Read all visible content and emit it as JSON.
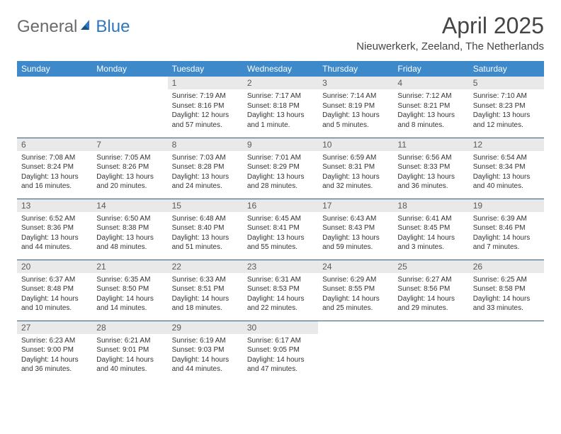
{
  "brand": {
    "part1": "General",
    "part2": "Blue"
  },
  "title": "April 2025",
  "location": "Nieuwerkerk, Zeeland, The Netherlands",
  "colors": {
    "header_bg": "#3d89c9",
    "header_text": "#ffffff",
    "daynum_bg": "#e9e9e9",
    "daynum_text": "#5a5a5a",
    "body_text": "#333333",
    "row_divider": "#2b5a82",
    "logo_gray": "#6a6a6a",
    "logo_blue": "#2f78bf",
    "title_color": "#454545",
    "page_bg": "#ffffff"
  },
  "weekdays": [
    "Sunday",
    "Monday",
    "Tuesday",
    "Wednesday",
    "Thursday",
    "Friday",
    "Saturday"
  ],
  "layout": {
    "leading_blanks": 2,
    "trailing_blanks": 3,
    "columns": 7,
    "rows": 5
  },
  "days": [
    {
      "n": "1",
      "sunrise": "7:19 AM",
      "sunset": "8:16 PM",
      "daylight": "12 hours and 57 minutes."
    },
    {
      "n": "2",
      "sunrise": "7:17 AM",
      "sunset": "8:18 PM",
      "daylight": "13 hours and 1 minute."
    },
    {
      "n": "3",
      "sunrise": "7:14 AM",
      "sunset": "8:19 PM",
      "daylight": "13 hours and 5 minutes."
    },
    {
      "n": "4",
      "sunrise": "7:12 AM",
      "sunset": "8:21 PM",
      "daylight": "13 hours and 8 minutes."
    },
    {
      "n": "5",
      "sunrise": "7:10 AM",
      "sunset": "8:23 PM",
      "daylight": "13 hours and 12 minutes."
    },
    {
      "n": "6",
      "sunrise": "7:08 AM",
      "sunset": "8:24 PM",
      "daylight": "13 hours and 16 minutes."
    },
    {
      "n": "7",
      "sunrise": "7:05 AM",
      "sunset": "8:26 PM",
      "daylight": "13 hours and 20 minutes."
    },
    {
      "n": "8",
      "sunrise": "7:03 AM",
      "sunset": "8:28 PM",
      "daylight": "13 hours and 24 minutes."
    },
    {
      "n": "9",
      "sunrise": "7:01 AM",
      "sunset": "8:29 PM",
      "daylight": "13 hours and 28 minutes."
    },
    {
      "n": "10",
      "sunrise": "6:59 AM",
      "sunset": "8:31 PM",
      "daylight": "13 hours and 32 minutes."
    },
    {
      "n": "11",
      "sunrise": "6:56 AM",
      "sunset": "8:33 PM",
      "daylight": "13 hours and 36 minutes."
    },
    {
      "n": "12",
      "sunrise": "6:54 AM",
      "sunset": "8:34 PM",
      "daylight": "13 hours and 40 minutes."
    },
    {
      "n": "13",
      "sunrise": "6:52 AM",
      "sunset": "8:36 PM",
      "daylight": "13 hours and 44 minutes."
    },
    {
      "n": "14",
      "sunrise": "6:50 AM",
      "sunset": "8:38 PM",
      "daylight": "13 hours and 48 minutes."
    },
    {
      "n": "15",
      "sunrise": "6:48 AM",
      "sunset": "8:40 PM",
      "daylight": "13 hours and 51 minutes."
    },
    {
      "n": "16",
      "sunrise": "6:45 AM",
      "sunset": "8:41 PM",
      "daylight": "13 hours and 55 minutes."
    },
    {
      "n": "17",
      "sunrise": "6:43 AM",
      "sunset": "8:43 PM",
      "daylight": "13 hours and 59 minutes."
    },
    {
      "n": "18",
      "sunrise": "6:41 AM",
      "sunset": "8:45 PM",
      "daylight": "14 hours and 3 minutes."
    },
    {
      "n": "19",
      "sunrise": "6:39 AM",
      "sunset": "8:46 PM",
      "daylight": "14 hours and 7 minutes."
    },
    {
      "n": "20",
      "sunrise": "6:37 AM",
      "sunset": "8:48 PM",
      "daylight": "14 hours and 10 minutes."
    },
    {
      "n": "21",
      "sunrise": "6:35 AM",
      "sunset": "8:50 PM",
      "daylight": "14 hours and 14 minutes."
    },
    {
      "n": "22",
      "sunrise": "6:33 AM",
      "sunset": "8:51 PM",
      "daylight": "14 hours and 18 minutes."
    },
    {
      "n": "23",
      "sunrise": "6:31 AM",
      "sunset": "8:53 PM",
      "daylight": "14 hours and 22 minutes."
    },
    {
      "n": "24",
      "sunrise": "6:29 AM",
      "sunset": "8:55 PM",
      "daylight": "14 hours and 25 minutes."
    },
    {
      "n": "25",
      "sunrise": "6:27 AM",
      "sunset": "8:56 PM",
      "daylight": "14 hours and 29 minutes."
    },
    {
      "n": "26",
      "sunrise": "6:25 AM",
      "sunset": "8:58 PM",
      "daylight": "14 hours and 33 minutes."
    },
    {
      "n": "27",
      "sunrise": "6:23 AM",
      "sunset": "9:00 PM",
      "daylight": "14 hours and 36 minutes."
    },
    {
      "n": "28",
      "sunrise": "6:21 AM",
      "sunset": "9:01 PM",
      "daylight": "14 hours and 40 minutes."
    },
    {
      "n": "29",
      "sunrise": "6:19 AM",
      "sunset": "9:03 PM",
      "daylight": "14 hours and 44 minutes."
    },
    {
      "n": "30",
      "sunrise": "6:17 AM",
      "sunset": "9:05 PM",
      "daylight": "14 hours and 47 minutes."
    }
  ],
  "labels": {
    "sunrise": "Sunrise:",
    "sunset": "Sunset:",
    "daylight": "Daylight:"
  }
}
